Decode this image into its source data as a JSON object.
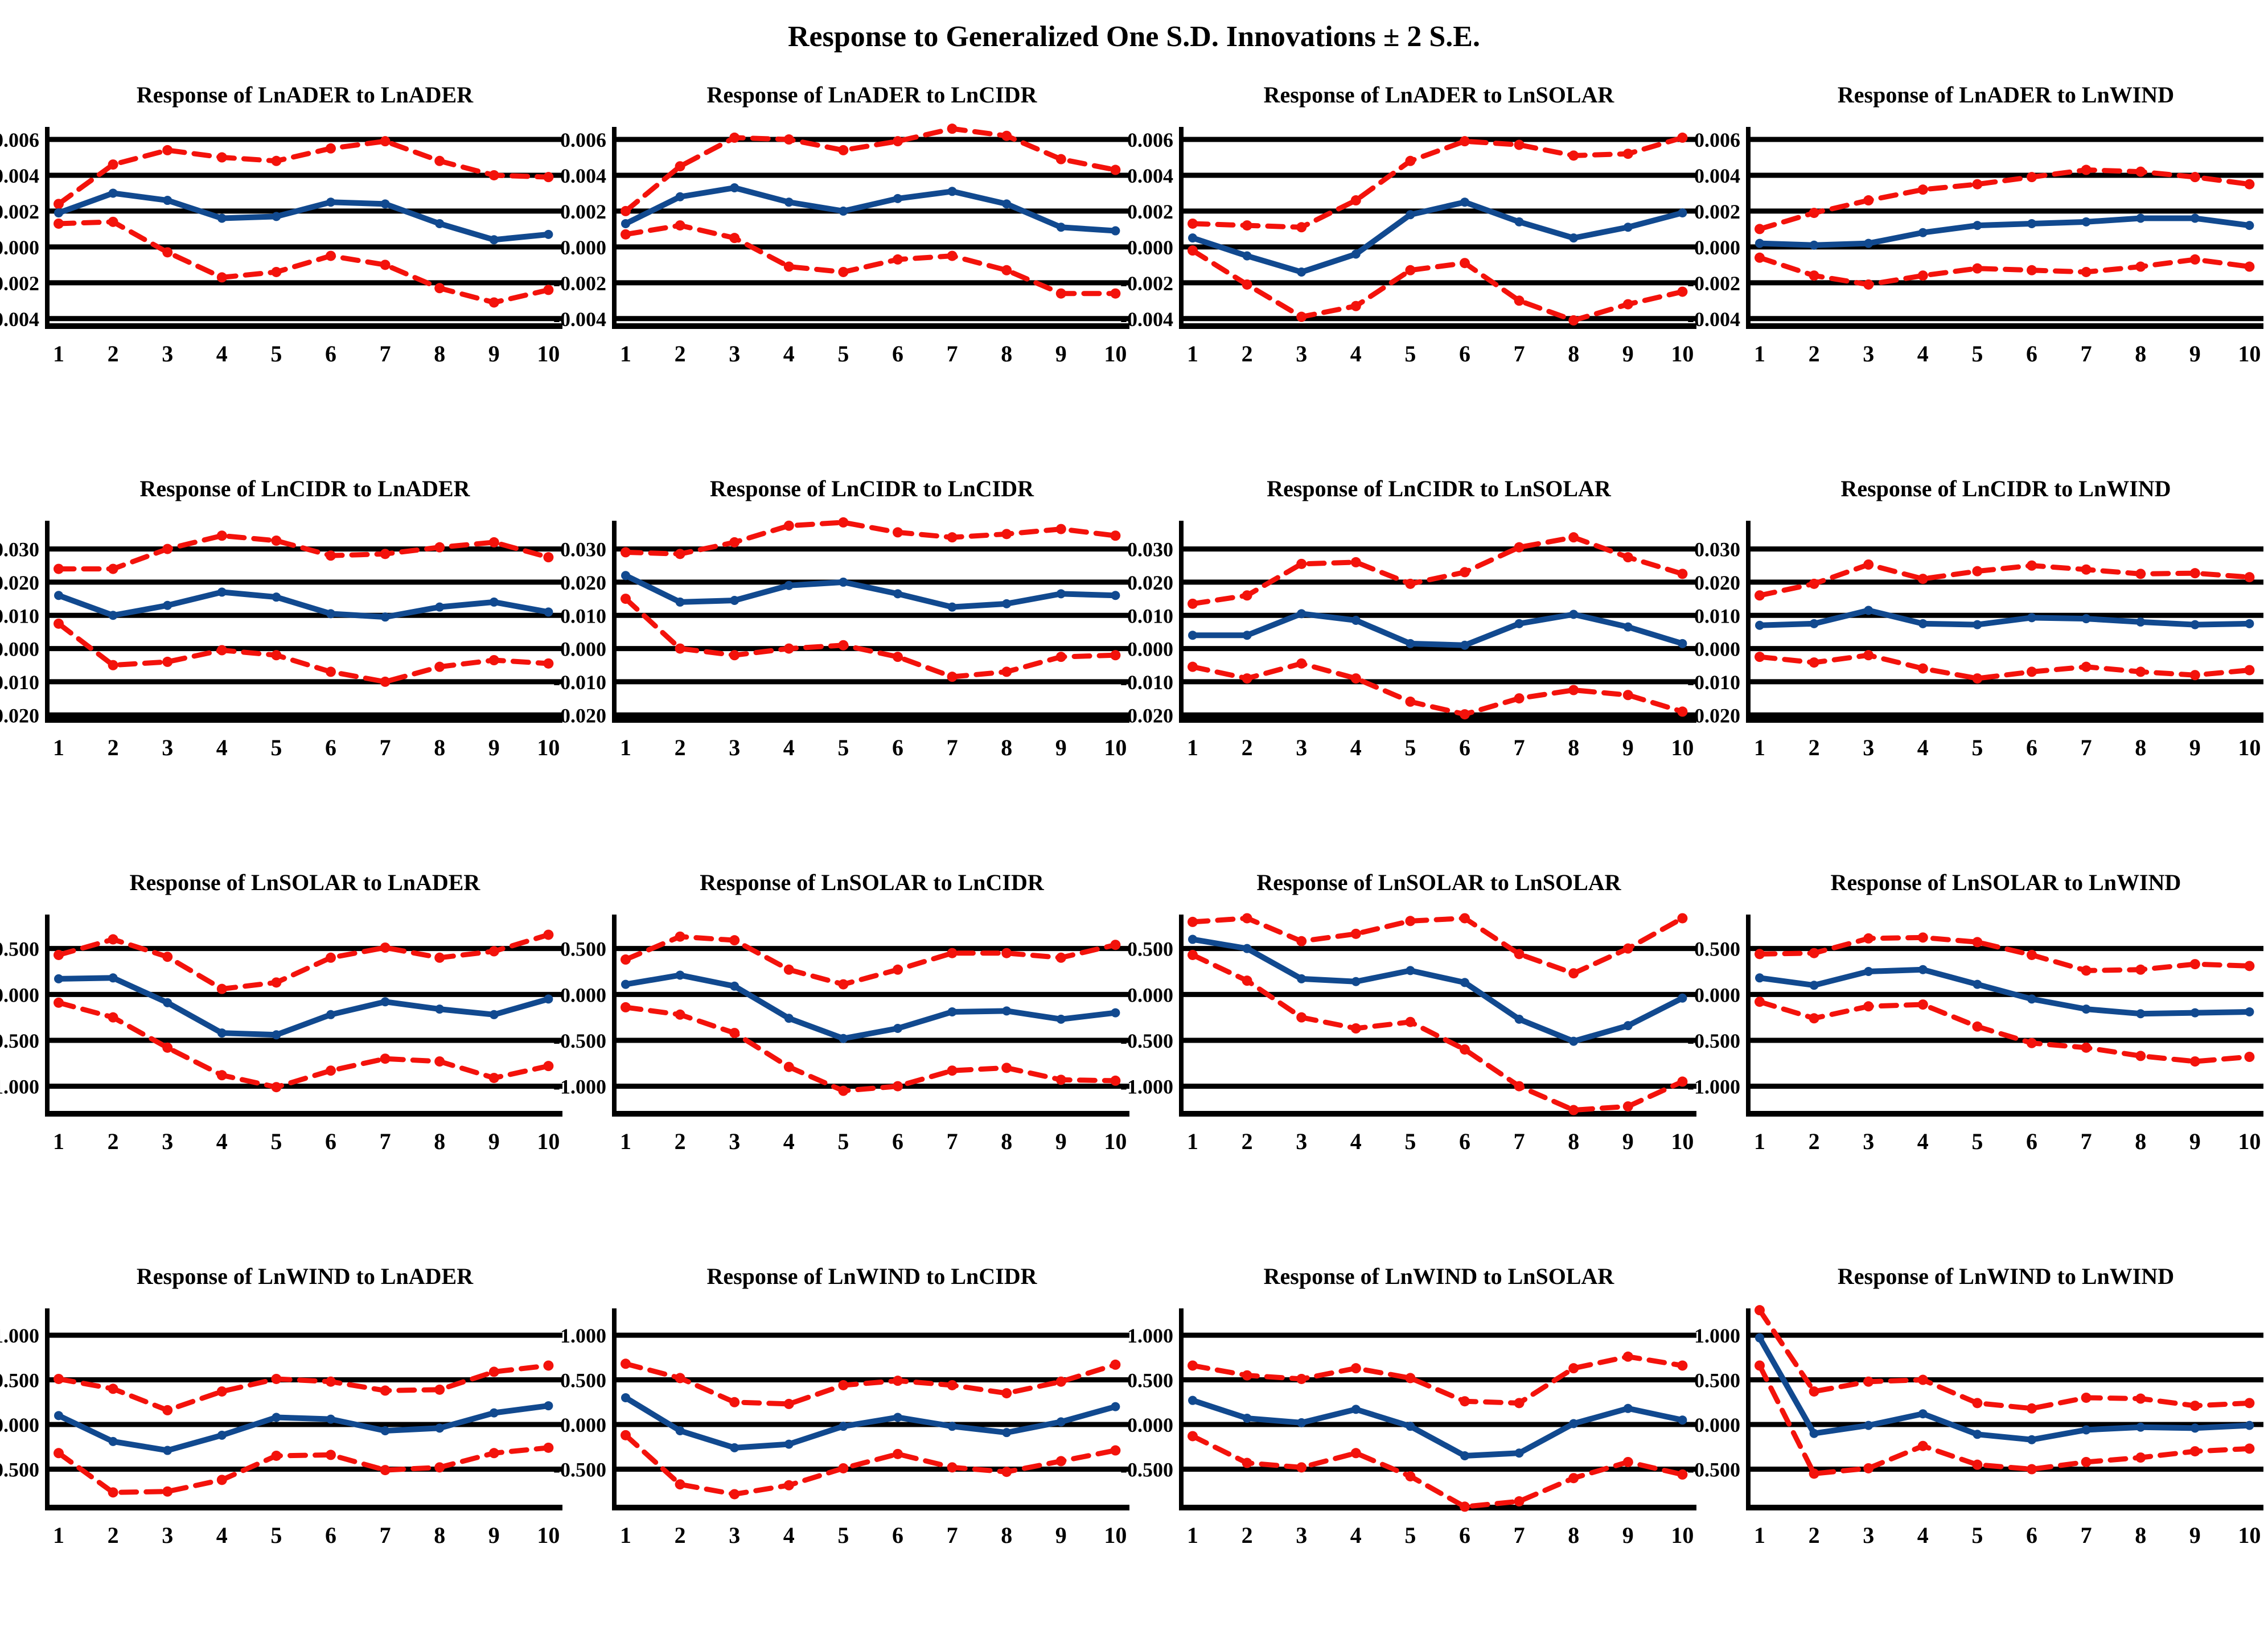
{
  "title": "Response to Generalized One S.D. Innovations ± 2 S.E.",
  "colors": {
    "mean_line": "#11498f",
    "band_line": "#f3120b",
    "grid_line": "#000000",
    "background": "#ffffff"
  },
  "layout": {
    "rows": 4,
    "cols": 4,
    "grid": "on",
    "legend": "none"
  },
  "x_labels": [
    "1",
    "2",
    "3",
    "4",
    "5",
    "6",
    "7",
    "8",
    "9",
    "10"
  ],
  "row_axes": [
    {
      "ymin": -0.00442,
      "ymax": 0.0067,
      "yticks": [
        0.006,
        0.004,
        0.002,
        0.0,
        -0.002,
        -0.004
      ],
      "ytick_labels": [
        "0.006",
        "0.004",
        "0.002",
        "0.000",
        "-0.002",
        "-0.004"
      ]
    },
    {
      "ymin": -0.0215,
      "ymax": 0.0385,
      "yticks": [
        0.03,
        0.02,
        0.01,
        0.0,
        -0.01,
        -0.02
      ],
      "ytick_labels": [
        "0.030",
        "0.020",
        "0.010",
        "0.000",
        "-0.010",
        "-0.020"
      ]
    },
    {
      "ymin": -1.3,
      "ymax": 0.87,
      "yticks": [
        0.5,
        0.0,
        -0.5,
        -1.0
      ],
      "ytick_labels": [
        "0.500",
        "0.000",
        "-0.500",
        "-1.000"
      ]
    },
    {
      "ymin": -0.93,
      "ymax": 1.3,
      "yticks": [
        1.0,
        0.5,
        0.0,
        -0.5
      ],
      "ytick_labels": [
        "1.000",
        "0.500",
        "0.000",
        "-0.500"
      ]
    }
  ],
  "chart_data": [
    {
      "type": "line",
      "title": "Response of LnADER to LnADER",
      "axis": 0,
      "series": [
        {
          "name": "response",
          "style": "solid-blue",
          "values": [
            0.0019,
            0.003,
            0.0026,
            0.0016,
            0.0017,
            0.0025,
            0.0024,
            0.0013,
            0.0004,
            0.0007
          ]
        },
        {
          "name": "upper_2se",
          "style": "dashed-red",
          "values": [
            0.0024,
            0.0046,
            0.0054,
            0.005,
            0.0048,
            0.0055,
            0.0059,
            0.0048,
            0.004,
            0.0039
          ]
        },
        {
          "name": "lower_2se",
          "style": "dashed-red",
          "values": [
            0.0013,
            0.0014,
            -0.0003,
            -0.0017,
            -0.0014,
            -0.0005,
            -0.001,
            -0.0023,
            -0.0031,
            -0.0024
          ]
        }
      ]
    },
    {
      "type": "line",
      "title": "Response of LnADER to LnCIDR",
      "axis": 0,
      "series": [
        {
          "name": "response",
          "style": "solid-blue",
          "values": [
            0.0013,
            0.0028,
            0.0033,
            0.0025,
            0.002,
            0.0027,
            0.0031,
            0.0024,
            0.0011,
            0.0009
          ]
        },
        {
          "name": "upper_2se",
          "style": "dashed-red",
          "values": [
            0.002,
            0.0045,
            0.0061,
            0.006,
            0.0054,
            0.0059,
            0.0066,
            0.0062,
            0.0049,
            0.0043
          ]
        },
        {
          "name": "lower_2se",
          "style": "dashed-red",
          "values": [
            0.0007,
            0.0012,
            0.0005,
            -0.0011,
            -0.0014,
            -0.0007,
            -0.0005,
            -0.0013,
            -0.0026,
            -0.0026
          ]
        }
      ]
    },
    {
      "type": "line",
      "title": "Response of LnADER to LnSOLAR",
      "axis": 0,
      "series": [
        {
          "name": "response",
          "style": "solid-blue",
          "values": [
            0.0005,
            -0.0005,
            -0.0014,
            -0.0004,
            0.0018,
            0.0025,
            0.0014,
            0.0005,
            0.0011,
            0.0019
          ]
        },
        {
          "name": "upper_2se",
          "style": "dashed-red",
          "values": [
            0.0013,
            0.0012,
            0.0011,
            0.0026,
            0.0048,
            0.0059,
            0.0057,
            0.0051,
            0.0052,
            0.0061
          ]
        },
        {
          "name": "lower_2se",
          "style": "dashed-red",
          "values": [
            -0.0002,
            -0.0021,
            -0.0039,
            -0.0033,
            -0.0013,
            -0.0009,
            -0.003,
            -0.0041,
            -0.0032,
            -0.0025
          ]
        }
      ]
    },
    {
      "type": "line",
      "title": "Response of LnADER to LnWIND",
      "axis": 0,
      "series": [
        {
          "name": "response",
          "style": "solid-blue",
          "values": [
            0.0002,
            0.0001,
            0.0002,
            0.0008,
            0.0012,
            0.0013,
            0.0014,
            0.0016,
            0.0016,
            0.0012
          ]
        },
        {
          "name": "upper_2se",
          "style": "dashed-red",
          "values": [
            0.001,
            0.0019,
            0.0026,
            0.0032,
            0.0035,
            0.0039,
            0.0043,
            0.0042,
            0.0039,
            0.0035
          ]
        },
        {
          "name": "lower_2se",
          "style": "dashed-red",
          "values": [
            -0.0006,
            -0.0016,
            -0.0021,
            -0.0016,
            -0.0012,
            -0.0013,
            -0.0014,
            -0.0011,
            -0.0007,
            -0.0011
          ]
        }
      ]
    },
    {
      "type": "line",
      "title": "Response of LnCIDR to LnADER",
      "axis": 1,
      "series": [
        {
          "name": "response",
          "style": "solid-blue",
          "values": [
            0.016,
            0.01,
            0.013,
            0.017,
            0.0155,
            0.0105,
            0.0095,
            0.0125,
            0.014,
            0.011
          ]
        },
        {
          "name": "upper_2se",
          "style": "dashed-red",
          "values": [
            0.024,
            0.024,
            0.03,
            0.034,
            0.0325,
            0.028,
            0.0285,
            0.0305,
            0.032,
            0.0275
          ]
        },
        {
          "name": "lower_2se",
          "style": "dashed-red",
          "values": [
            0.0075,
            -0.005,
            -0.004,
            -0.0005,
            -0.002,
            -0.007,
            -0.01,
            -0.0055,
            -0.0035,
            -0.0045
          ]
        }
      ]
    },
    {
      "type": "line",
      "title": "Response of LnCIDR to LnCIDR",
      "axis": 1,
      "series": [
        {
          "name": "response",
          "style": "solid-blue",
          "values": [
            0.022,
            0.014,
            0.0145,
            0.019,
            0.02,
            0.0165,
            0.0125,
            0.0135,
            0.0165,
            0.016
          ]
        },
        {
          "name": "upper_2se",
          "style": "dashed-red",
          "values": [
            0.029,
            0.0285,
            0.032,
            0.037,
            0.038,
            0.035,
            0.0335,
            0.0345,
            0.036,
            0.034
          ]
        },
        {
          "name": "lower_2se",
          "style": "dashed-red",
          "values": [
            0.015,
            0.0,
            -0.002,
            0.0,
            0.001,
            -0.0025,
            -0.0085,
            -0.007,
            -0.0025,
            -0.002
          ]
        }
      ]
    },
    {
      "type": "line",
      "title": "Response of LnCIDR to LnSOLAR",
      "axis": 1,
      "series": [
        {
          "name": "response",
          "style": "solid-blue",
          "values": [
            0.004,
            0.004,
            0.0105,
            0.0085,
            0.0015,
            0.001,
            0.0075,
            0.0103,
            0.0065,
            0.0015
          ]
        },
        {
          "name": "upper_2se",
          "style": "dashed-red",
          "values": [
            0.0135,
            0.016,
            0.0255,
            0.026,
            0.0195,
            0.023,
            0.0305,
            0.0335,
            0.0275,
            0.0225
          ]
        },
        {
          "name": "lower_2se",
          "style": "dashed-red",
          "values": [
            -0.0055,
            -0.009,
            -0.0045,
            -0.009,
            -0.016,
            -0.0198,
            -0.015,
            -0.0125,
            -0.014,
            -0.019
          ]
        }
      ]
    },
    {
      "type": "line",
      "title": "Response of LnCIDR to LnWIND",
      "axis": 1,
      "series": [
        {
          "name": "response",
          "style": "solid-blue",
          "values": [
            0.007,
            0.0075,
            0.0115,
            0.0075,
            0.0072,
            0.0093,
            0.009,
            0.008,
            0.0072,
            0.0075
          ]
        },
        {
          "name": "upper_2se",
          "style": "dashed-red",
          "values": [
            0.016,
            0.0195,
            0.0253,
            0.021,
            0.0233,
            0.025,
            0.0238,
            0.0225,
            0.0227,
            0.0215
          ]
        },
        {
          "name": "lower_2se",
          "style": "dashed-red",
          "values": [
            -0.0025,
            -0.0042,
            -0.002,
            -0.006,
            -0.009,
            -0.007,
            -0.0055,
            -0.007,
            -0.008,
            -0.0065
          ]
        }
      ]
    },
    {
      "type": "line",
      "title": "Response of LnSOLAR to LnADER",
      "axis": 2,
      "series": [
        {
          "name": "response",
          "style": "solid-blue",
          "values": [
            0.17,
            0.18,
            -0.09,
            -0.42,
            -0.44,
            -0.22,
            -0.08,
            -0.16,
            -0.22,
            -0.05
          ]
        },
        {
          "name": "upper_2se",
          "style": "dashed-red",
          "values": [
            0.43,
            0.6,
            0.41,
            0.06,
            0.13,
            0.4,
            0.51,
            0.4,
            0.47,
            0.65
          ]
        },
        {
          "name": "lower_2se",
          "style": "dashed-red",
          "values": [
            -0.09,
            -0.25,
            -0.58,
            -0.88,
            -1.01,
            -0.83,
            -0.7,
            -0.73,
            -0.91,
            -0.78
          ]
        }
      ]
    },
    {
      "type": "line",
      "title": "Response of LnSOLAR to LnCIDR",
      "axis": 2,
      "series": [
        {
          "name": "response",
          "style": "solid-blue",
          "values": [
            0.11,
            0.21,
            0.09,
            -0.26,
            -0.48,
            -0.37,
            -0.19,
            -0.18,
            -0.27,
            -0.2
          ]
        },
        {
          "name": "upper_2se",
          "style": "dashed-red",
          "values": [
            0.38,
            0.63,
            0.59,
            0.27,
            0.11,
            0.27,
            0.45,
            0.45,
            0.4,
            0.54
          ]
        },
        {
          "name": "lower_2se",
          "style": "dashed-red",
          "values": [
            -0.14,
            -0.22,
            -0.42,
            -0.79,
            -1.05,
            -1.0,
            -0.83,
            -0.8,
            -0.93,
            -0.94
          ]
        }
      ]
    },
    {
      "type": "line",
      "title": "Response of LnSOLAR to LnSOLAR",
      "axis": 2,
      "series": [
        {
          "name": "response",
          "style": "solid-blue",
          "values": [
            0.6,
            0.5,
            0.17,
            0.14,
            0.26,
            0.13,
            -0.27,
            -0.51,
            -0.34,
            -0.04
          ]
        },
        {
          "name": "upper_2se",
          "style": "dashed-red",
          "values": [
            0.79,
            0.83,
            0.58,
            0.66,
            0.8,
            0.83,
            0.44,
            0.23,
            0.5,
            0.83
          ]
        },
        {
          "name": "lower_2se",
          "style": "dashed-red",
          "values": [
            0.43,
            0.15,
            -0.25,
            -0.37,
            -0.3,
            -0.6,
            -1.0,
            -1.26,
            -1.22,
            -0.95
          ]
        }
      ]
    },
    {
      "type": "line",
      "title": "Response of LnSOLAR to LnWIND",
      "axis": 2,
      "series": [
        {
          "name": "response",
          "style": "solid-blue",
          "values": [
            0.18,
            0.1,
            0.25,
            0.27,
            0.11,
            -0.05,
            -0.16,
            -0.21,
            -0.2,
            -0.19
          ]
        },
        {
          "name": "upper_2se",
          "style": "dashed-red",
          "values": [
            0.44,
            0.45,
            0.61,
            0.62,
            0.57,
            0.43,
            0.26,
            0.27,
            0.33,
            0.31
          ]
        },
        {
          "name": "lower_2se",
          "style": "dashed-red",
          "values": [
            -0.08,
            -0.26,
            -0.13,
            -0.11,
            -0.35,
            -0.53,
            -0.58,
            -0.67,
            -0.73,
            -0.68
          ]
        }
      ]
    },
    {
      "type": "line",
      "title": "Response of LnWIND to LnADER",
      "axis": 3,
      "series": [
        {
          "name": "response",
          "style": "solid-blue",
          "values": [
            0.1,
            -0.19,
            -0.29,
            -0.12,
            0.08,
            0.06,
            -0.07,
            -0.04,
            0.13,
            0.21
          ]
        },
        {
          "name": "upper_2se",
          "style": "dashed-red",
          "values": [
            0.51,
            0.4,
            0.16,
            0.37,
            0.51,
            0.48,
            0.38,
            0.39,
            0.59,
            0.66
          ]
        },
        {
          "name": "lower_2se",
          "style": "dashed-red",
          "values": [
            -0.32,
            -0.76,
            -0.75,
            -0.62,
            -0.35,
            -0.34,
            -0.51,
            -0.48,
            -0.32,
            -0.26
          ]
        }
      ]
    },
    {
      "type": "line",
      "title": "Response of LnWIND to LnCIDR",
      "axis": 3,
      "series": [
        {
          "name": "response",
          "style": "solid-blue",
          "values": [
            0.3,
            -0.07,
            -0.26,
            -0.22,
            -0.02,
            0.08,
            -0.02,
            -0.09,
            0.03,
            0.2
          ]
        },
        {
          "name": "upper_2se",
          "style": "dashed-red",
          "values": [
            0.68,
            0.52,
            0.25,
            0.23,
            0.44,
            0.49,
            0.44,
            0.35,
            0.48,
            0.67
          ]
        },
        {
          "name": "lower_2se",
          "style": "dashed-red",
          "values": [
            -0.12,
            -0.67,
            -0.78,
            -0.68,
            -0.49,
            -0.33,
            -0.48,
            -0.53,
            -0.41,
            -0.29
          ]
        }
      ]
    },
    {
      "type": "line",
      "title": "Response of LnWIND to LnSOLAR",
      "axis": 3,
      "series": [
        {
          "name": "response",
          "style": "solid-blue",
          "values": [
            0.27,
            0.07,
            0.02,
            0.17,
            -0.02,
            -0.35,
            -0.32,
            0.01,
            0.18,
            0.05
          ]
        },
        {
          "name": "upper_2se",
          "style": "dashed-red",
          "values": [
            0.66,
            0.55,
            0.51,
            0.63,
            0.52,
            0.26,
            0.24,
            0.63,
            0.76,
            0.66
          ]
        },
        {
          "name": "lower_2se",
          "style": "dashed-red",
          "values": [
            -0.13,
            -0.43,
            -0.48,
            -0.32,
            -0.58,
            -0.92,
            -0.86,
            -0.6,
            -0.42,
            -0.56
          ]
        }
      ]
    },
    {
      "type": "line",
      "title": "Response of LnWIND to LnWIND",
      "axis": 3,
      "series": [
        {
          "name": "response",
          "style": "solid-blue",
          "values": [
            0.97,
            -0.1,
            -0.01,
            0.12,
            -0.11,
            -0.17,
            -0.06,
            -0.03,
            -0.04,
            -0.01
          ]
        },
        {
          "name": "upper_2se",
          "style": "dashed-red",
          "values": [
            1.28,
            0.37,
            0.48,
            0.5,
            0.24,
            0.18,
            0.3,
            0.29,
            0.21,
            0.24
          ]
        },
        {
          "name": "lower_2se",
          "style": "dashed-red",
          "values": [
            0.66,
            -0.55,
            -0.49,
            -0.24,
            -0.45,
            -0.5,
            -0.42,
            -0.37,
            -0.3,
            -0.27
          ]
        }
      ]
    }
  ]
}
